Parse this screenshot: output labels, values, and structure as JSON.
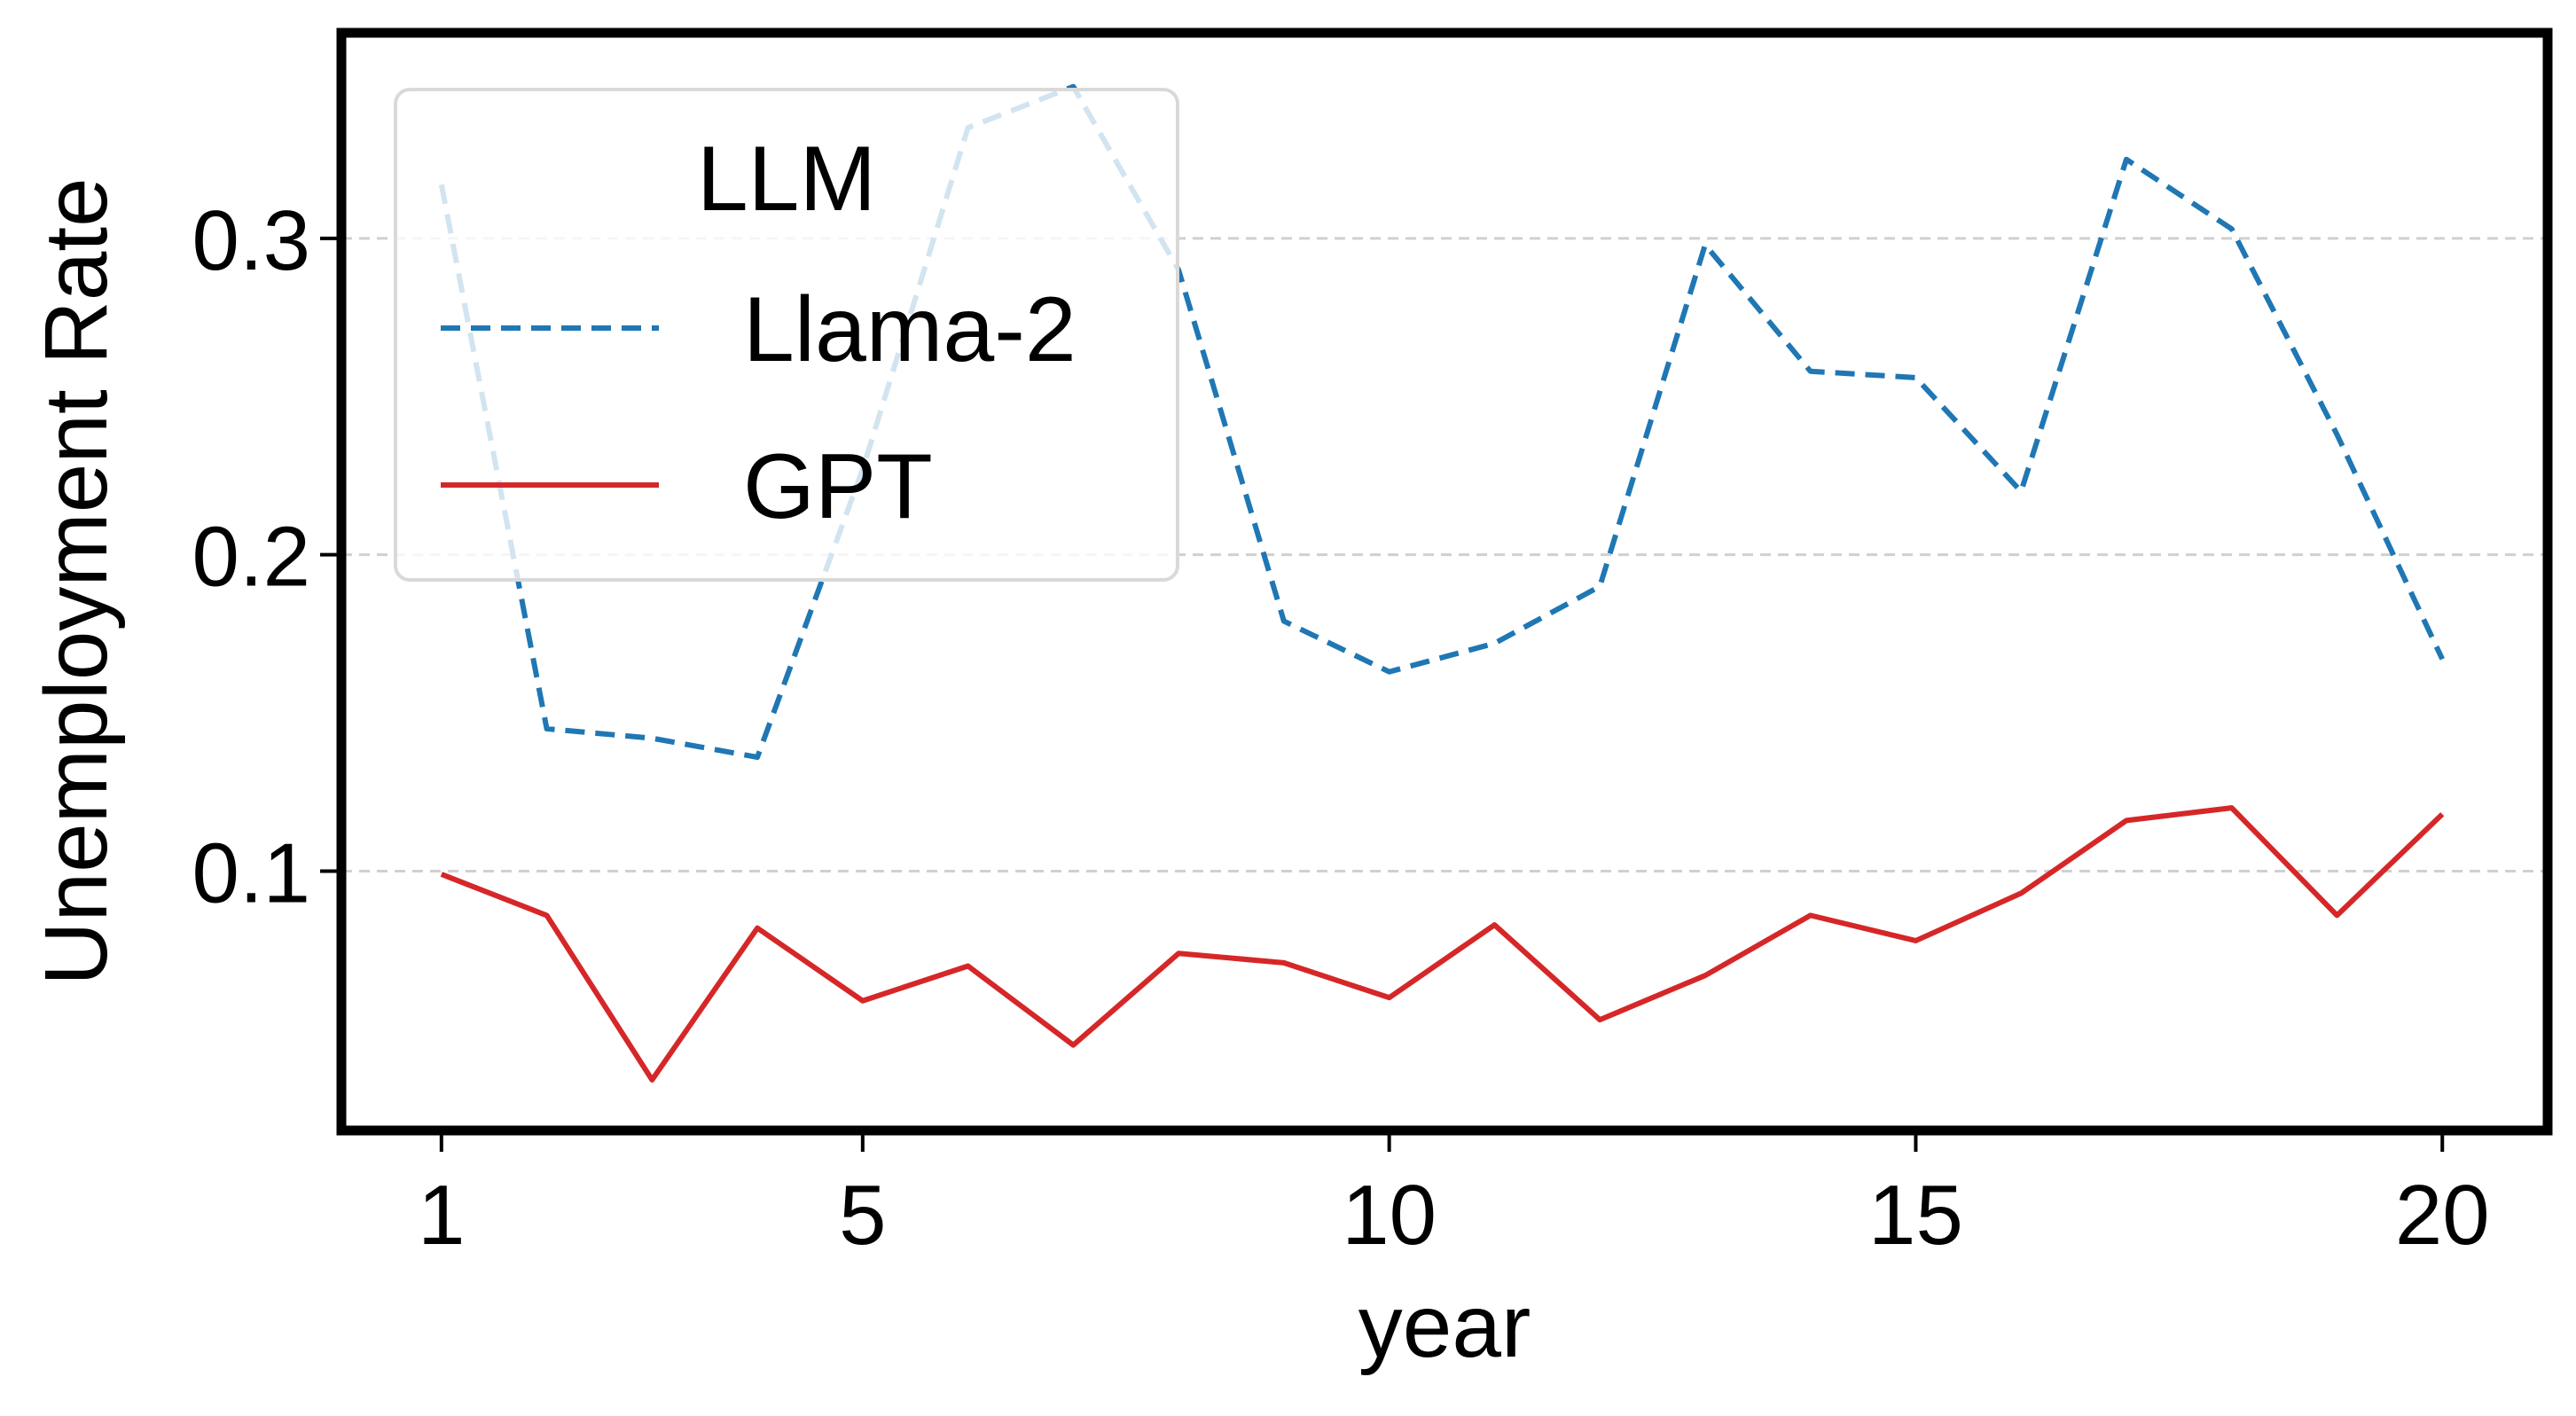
{
  "chart_data": {
    "type": "line",
    "title": "",
    "xlabel": "year",
    "ylabel": "Unemployment Rate",
    "x": [
      1,
      2,
      3,
      4,
      5,
      6,
      7,
      8,
      9,
      10,
      11,
      12,
      13,
      14,
      15,
      16,
      17,
      18,
      19,
      20
    ],
    "xticks": [
      1,
      5,
      10,
      15,
      20
    ],
    "xtick_labels": [
      "1",
      "5",
      "10",
      "15",
      "20"
    ],
    "yticks": [
      0.1,
      0.2,
      0.3
    ],
    "ytick_labels": [
      "0.1",
      "0.2",
      "0.3"
    ],
    "xlim": [
      0.05,
      21.0
    ],
    "ylim": [
      0.018,
      0.365
    ],
    "grid": {
      "y": true,
      "x": false,
      "style": "dashed",
      "color": "#d0d0d0"
    },
    "legend": {
      "title": "LLM",
      "placement": "upper-left"
    },
    "series": [
      {
        "name": "Llama-2",
        "style": "dashed",
        "color": "#1f77b4",
        "values": [
          0.317,
          0.145,
          0.142,
          0.136,
          0.227,
          0.335,
          0.348,
          0.29,
          0.179,
          0.163,
          0.172,
          0.19,
          0.298,
          0.258,
          0.256,
          0.22,
          0.325,
          0.303,
          0.238,
          0.167
        ]
      },
      {
        "name": "GPT",
        "style": "solid",
        "color": "#d62728",
        "values": [
          0.099,
          0.086,
          0.034,
          0.082,
          0.059,
          0.07,
          0.045,
          0.074,
          0.071,
          0.06,
          0.083,
          0.053,
          0.067,
          0.086,
          0.078,
          0.093,
          0.116,
          0.12,
          0.086,
          0.118
        ]
      }
    ]
  }
}
